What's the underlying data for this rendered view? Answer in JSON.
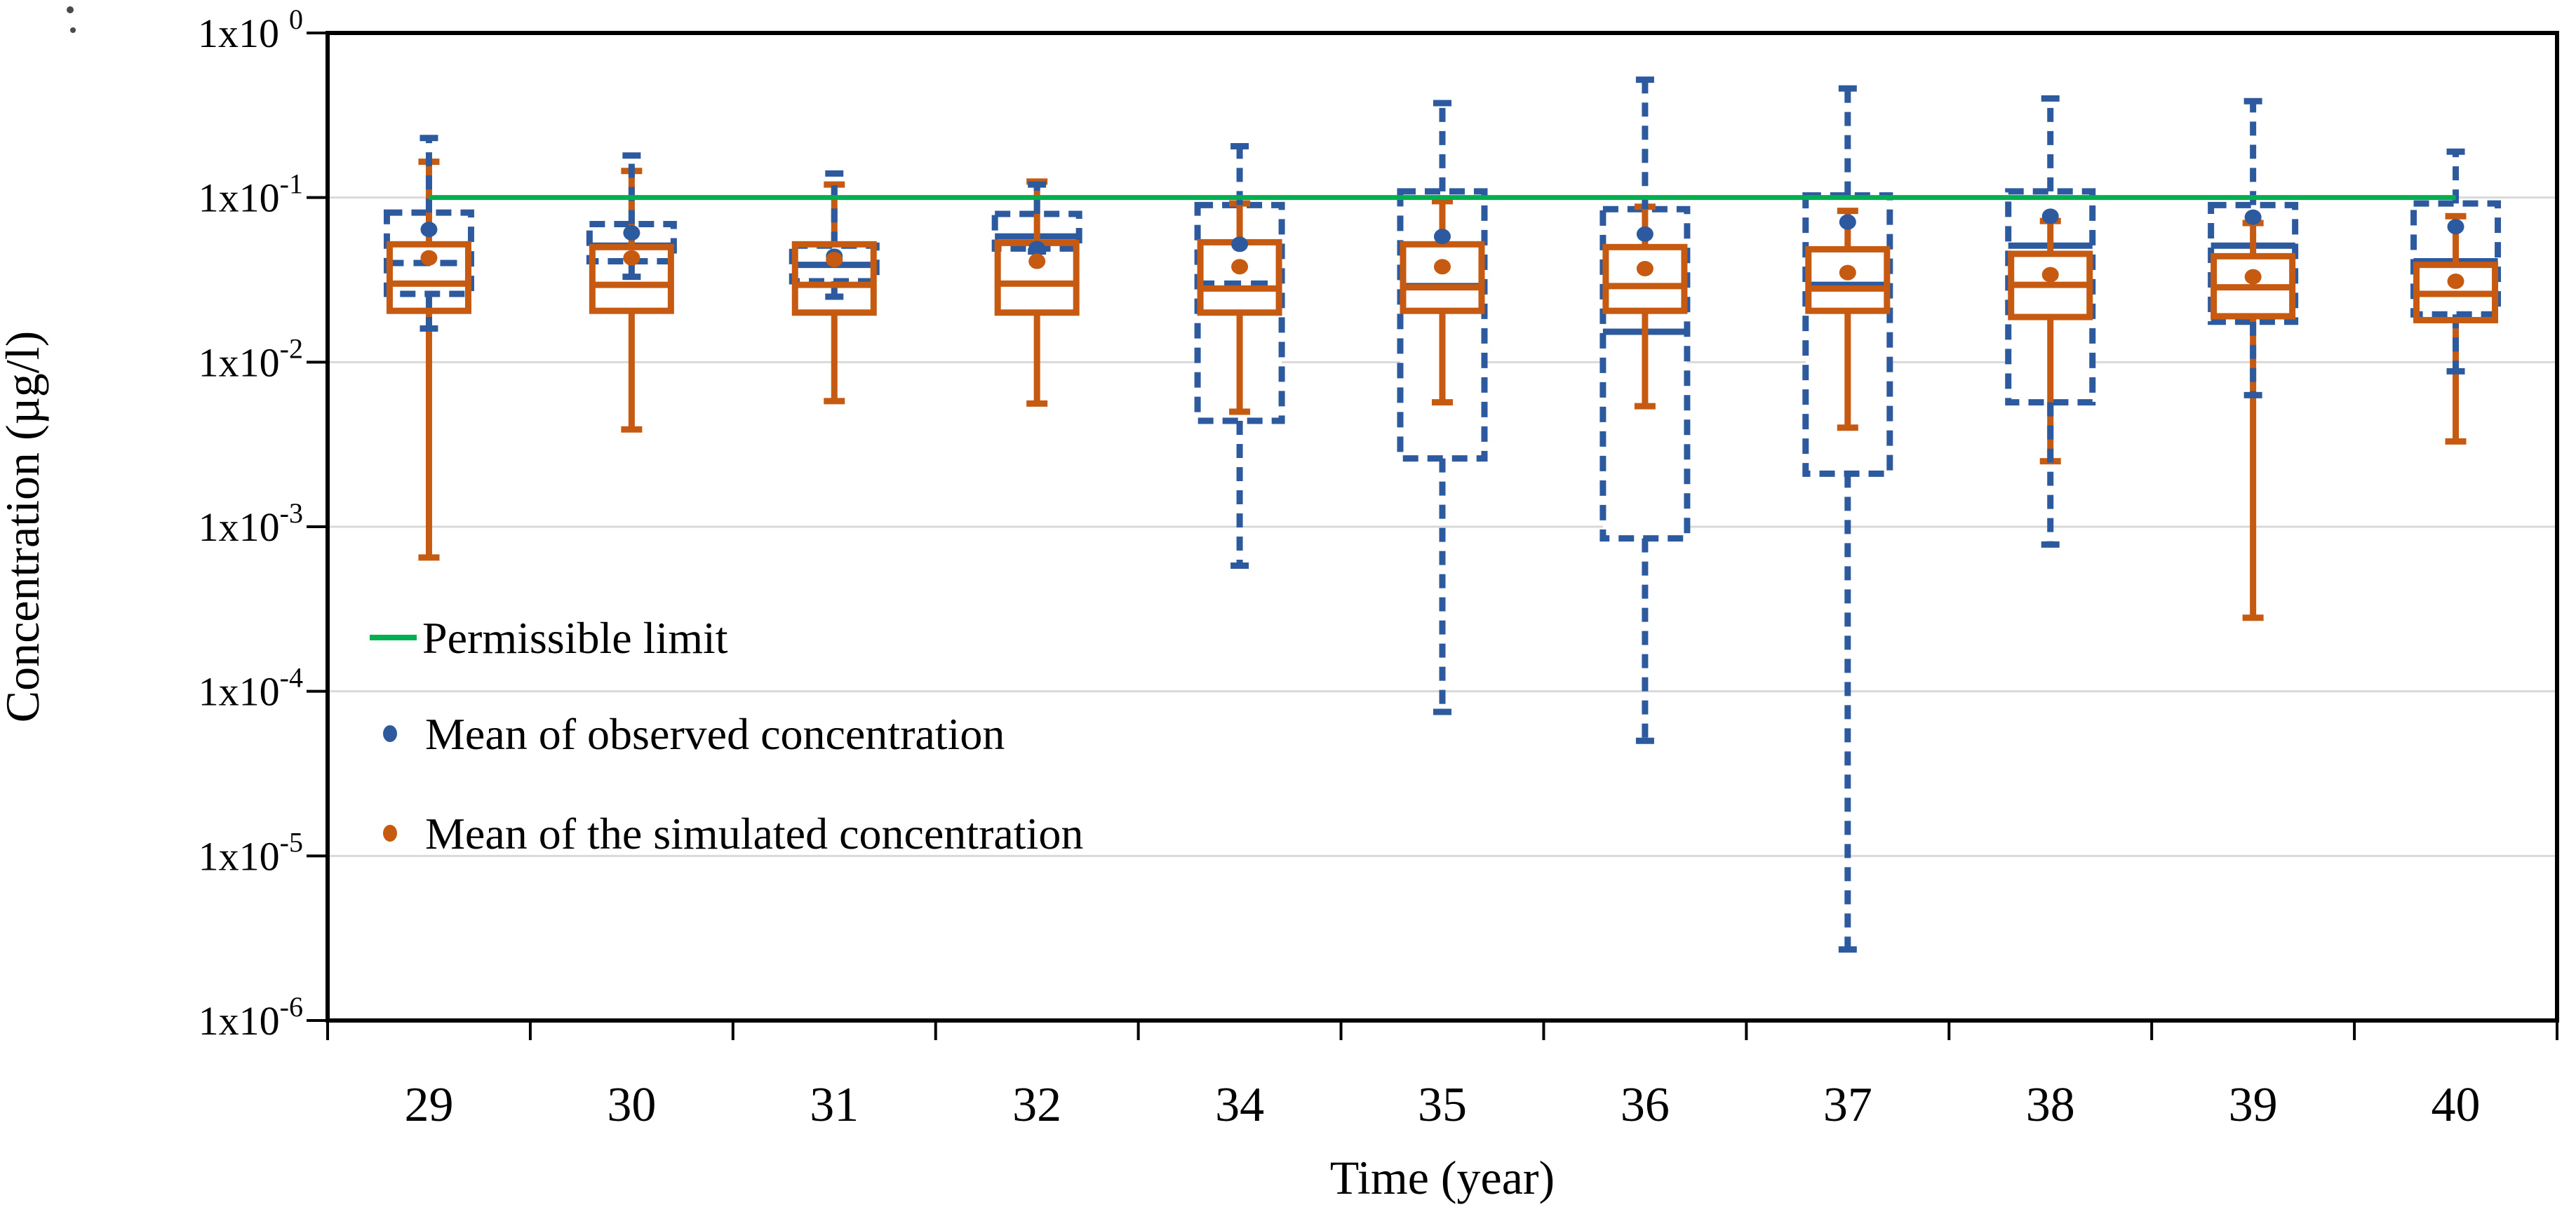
{
  "chart_data": {
    "type": "boxplot",
    "title": "",
    "xlabel": "Time (year)",
    "ylabel": "Concentration (µg/l)",
    "y_scale": "log10",
    "ylim": [
      1e-06,
      1
    ],
    "grid": true,
    "legend_position": "inside-left",
    "y_ticks": [
      {
        "base": "1x10",
        "exp": "0",
        "value": 1
      },
      {
        "base": "1x10",
        "exp": "-1",
        "value": 0.1
      },
      {
        "base": "1x10",
        "exp": "-2",
        "value": 0.01
      },
      {
        "base": "1x10",
        "exp": "-3",
        "value": 0.001
      },
      {
        "base": "1x10",
        "exp": "-4",
        "value": 0.0001
      },
      {
        "base": "1x10",
        "exp": "-5",
        "value": 1e-05
      },
      {
        "base": "1x10",
        "exp": "-6",
        "value": 1e-06
      }
    ],
    "categories": [
      "29",
      "30",
      "31",
      "32",
      "34",
      "35",
      "36",
      "37",
      "38",
      "39",
      "40"
    ],
    "permissible_limit": {
      "label": "Permissible limit",
      "value": 0.1,
      "color": "#00b050"
    },
    "series": [
      {
        "name": "observed",
        "legend_label": "Mean of observed concentration",
        "color": "#2d5a9e",
        "box_style": "dashed",
        "boxes": [
          {
            "year": "29",
            "lo": 0.016,
            "q1": 0.026,
            "med": 0.04,
            "q3": 0.081,
            "hi": 0.23,
            "mean": 0.064,
            "med_style": "dashed"
          },
          {
            "year": "30",
            "lo": 0.033,
            "q1": 0.041,
            "med": 0.051,
            "q3": 0.069,
            "hi": 0.18,
            "mean": 0.061,
            "med_style": "solid"
          },
          {
            "year": "31",
            "lo": 0.025,
            "q1": 0.031,
            "med": 0.039,
            "q3": 0.051,
            "hi": 0.14,
            "mean": 0.044,
            "med_style": "solid"
          },
          {
            "year": "32",
            "lo": 0.047,
            "q1": 0.049,
            "med": 0.058,
            "q3": 0.0795,
            "hi": 0.12,
            "mean": 0.049,
            "med_style": "solid"
          },
          {
            "year": "34",
            "lo": 0.00058,
            "q1": 0.0044,
            "med": 0.03,
            "q3": 0.09,
            "hi": 0.205,
            "mean": 0.052,
            "med_style": "dashed"
          },
          {
            "year": "35",
            "lo": 7.5e-05,
            "q1": 0.0026,
            "med": 0.029,
            "q3": 0.109,
            "hi": 0.375,
            "mean": 0.058,
            "med_style": "solid"
          },
          {
            "year": "36",
            "lo": 5e-05,
            "q1": 0.00085,
            "med": 0.0153,
            "q3": 0.085,
            "hi": 0.52,
            "mean": 0.06,
            "med_style": "solid"
          },
          {
            "year": "37",
            "lo": 2.7e-06,
            "q1": 0.0021,
            "med": 0.0295,
            "q3": 0.103,
            "hi": 0.46,
            "mean": 0.071,
            "med_style": "solid"
          },
          {
            "year": "38",
            "lo": 0.00078,
            "q1": 0.0057,
            "med": 0.051,
            "q3": 0.109,
            "hi": 0.4,
            "mean": 0.077,
            "med_style": "solid"
          },
          {
            "year": "39",
            "lo": 0.0063,
            "q1": 0.0176,
            "med": 0.051,
            "q3": 0.09,
            "hi": 0.385,
            "mean": 0.076,
            "med_style": "solid"
          },
          {
            "year": "40",
            "lo": 0.0088,
            "q1": 0.0195,
            "med": 0.041,
            "q3": 0.092,
            "hi": 0.19,
            "mean": 0.0665,
            "med_style": "solid"
          }
        ]
      },
      {
        "name": "simulated",
        "legend_label": "Mean of the simulated concentration",
        "color": "#c65a11",
        "box_style": "solid",
        "boxes": [
          {
            "year": "29",
            "lo": 0.00065,
            "q1": 0.0205,
            "med": 0.03,
            "q3": 0.052,
            "hi": 0.165,
            "mean": 0.043
          },
          {
            "year": "30",
            "lo": 0.0039,
            "q1": 0.0205,
            "med": 0.0295,
            "q3": 0.05,
            "hi": 0.145,
            "mean": 0.043
          },
          {
            "year": "31",
            "lo": 0.0058,
            "q1": 0.02,
            "med": 0.0295,
            "q3": 0.052,
            "hi": 0.12,
            "mean": 0.042
          },
          {
            "year": "32",
            "lo": 0.0056,
            "q1": 0.02,
            "med": 0.03,
            "q3": 0.053,
            "hi": 0.125,
            "mean": 0.041
          },
          {
            "year": "34",
            "lo": 0.005,
            "q1": 0.02,
            "med": 0.028,
            "q3": 0.0535,
            "hi": 0.092,
            "mean": 0.038
          },
          {
            "year": "35",
            "lo": 0.0057,
            "q1": 0.0205,
            "med": 0.0285,
            "q3": 0.052,
            "hi": 0.095,
            "mean": 0.038
          },
          {
            "year": "36",
            "lo": 0.0054,
            "q1": 0.0205,
            "med": 0.029,
            "q3": 0.05,
            "hi": 0.088,
            "mean": 0.037
          },
          {
            "year": "37",
            "lo": 0.004,
            "q1": 0.0205,
            "med": 0.028,
            "q3": 0.0485,
            "hi": 0.083,
            "mean": 0.035
          },
          {
            "year": "38",
            "lo": 0.0025,
            "q1": 0.0188,
            "med": 0.0295,
            "q3": 0.0455,
            "hi": 0.072,
            "mean": 0.034
          },
          {
            "year": "39",
            "lo": 0.00028,
            "q1": 0.019,
            "med": 0.0285,
            "q3": 0.044,
            "hi": 0.07,
            "mean": 0.033
          },
          {
            "year": "40",
            "lo": 0.0033,
            "q1": 0.018,
            "med": 0.026,
            "q3": 0.039,
            "hi": 0.077,
            "mean": 0.031
          }
        ]
      }
    ],
    "colors": {
      "observed": "#2d5a9e",
      "simulated": "#c65a11",
      "permissible_limit": "#00b050",
      "gridline": "#d9d9d9",
      "axis": "#000000"
    }
  }
}
